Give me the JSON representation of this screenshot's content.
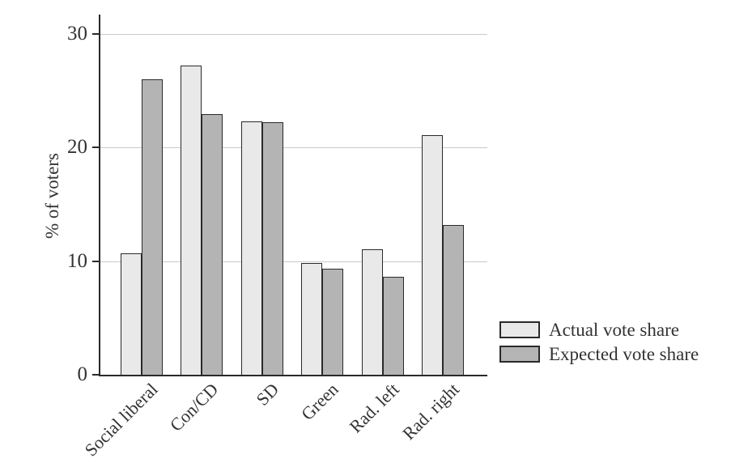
{
  "chart_data": {
    "type": "bar",
    "title": "",
    "xlabel": "",
    "ylabel": "% of voters",
    "categories": [
      "Social liberal",
      "Con/CD",
      "SD",
      "Green",
      "Rad. left",
      "Rad. right"
    ],
    "series": [
      {
        "name": "Actual vote share",
        "color": "#e9e9e9",
        "values": [
          10.7,
          27.2,
          22.3,
          9.8,
          11.0,
          21.1
        ]
      },
      {
        "name": "Expected vote share",
        "color": "#b4b4b4",
        "values": [
          26.0,
          22.9,
          22.2,
          9.3,
          8.6,
          13.2
        ]
      }
    ],
    "yticks": [
      0,
      10,
      20,
      30
    ],
    "ylim": [
      0,
      31.7
    ],
    "grid": "horizontal",
    "legend_position": "right-of-plot-bottom"
  },
  "colors": {
    "background": "#ffffff",
    "bar_border": "#2a2a2a",
    "axis": "#2a2a2a",
    "gridline": "#c9c9c9",
    "text": "#333333"
  }
}
